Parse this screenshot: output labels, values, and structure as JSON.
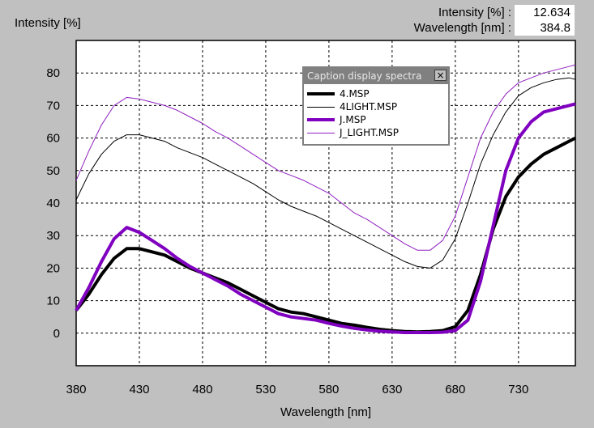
{
  "readout": {
    "intensity_label": "Intensity [%] :",
    "intensity_value": "12.634",
    "wavelength_label": "Wavelength [nm] :",
    "wavelength_value": "384.8"
  },
  "caption_window": {
    "title": "Caption display spectra",
    "close_glyph": "×"
  },
  "chart_data": {
    "type": "line",
    "xlabel": "Wavelength [nm]",
    "ylabel": "Intensity [%]",
    "xlim": [
      380,
      775
    ],
    "ylim": [
      -10,
      90
    ],
    "xticks": [
      380,
      430,
      480,
      530,
      580,
      630,
      680,
      730
    ],
    "yticks": [
      0,
      10,
      20,
      30,
      40,
      50,
      60,
      70,
      80
    ],
    "grid": true,
    "legend_placement": "top-center",
    "series": [
      {
        "name": "4.MSP",
        "color": "#000000",
        "width": "thick",
        "x": [
          380,
          390,
          400,
          410,
          420,
          430,
          440,
          450,
          460,
          470,
          480,
          490,
          500,
          510,
          520,
          530,
          540,
          550,
          560,
          570,
          580,
          590,
          600,
          610,
          620,
          630,
          640,
          650,
          660,
          670,
          680,
          690,
          700,
          710,
          720,
          730,
          740,
          750,
          760,
          770,
          775
        ],
        "y": [
          7,
          12,
          18,
          23,
          26,
          26,
          25,
          24,
          22,
          20,
          18.5,
          17,
          15.5,
          13.5,
          11.5,
          9.5,
          7.5,
          6.5,
          6,
          5,
          4,
          3,
          2.5,
          1.8,
          1.2,
          0.8,
          0.5,
          0.4,
          0.5,
          0.8,
          2,
          7,
          18,
          32,
          42,
          48,
          52,
          55,
          57,
          59,
          60
        ]
      },
      {
        "name": "4LIGHT.MSP",
        "color": "#000000",
        "width": "thin",
        "x": [
          380,
          390,
          400,
          410,
          420,
          430,
          440,
          450,
          460,
          470,
          480,
          490,
          500,
          510,
          520,
          530,
          540,
          550,
          560,
          570,
          580,
          590,
          600,
          610,
          620,
          630,
          640,
          650,
          660,
          670,
          680,
          690,
          700,
          710,
          720,
          730,
          740,
          750,
          760,
          770,
          775
        ],
        "y": [
          41,
          49,
          55,
          59,
          61,
          61,
          60,
          59,
          57,
          55.5,
          54,
          52,
          50,
          48,
          46,
          43.5,
          41,
          39,
          37.5,
          36,
          34,
          32,
          30,
          28,
          26,
          24,
          22,
          20.5,
          20,
          22.5,
          29,
          40,
          52,
          61,
          68,
          73,
          75.5,
          77,
          78,
          78.5,
          78
        ]
      },
      {
        "name": "J.MSP",
        "color": "#8000c0",
        "width": "thick",
        "x": [
          380,
          390,
          400,
          410,
          420,
          430,
          440,
          450,
          460,
          470,
          480,
          490,
          500,
          510,
          520,
          530,
          540,
          550,
          560,
          570,
          580,
          590,
          600,
          610,
          620,
          630,
          640,
          650,
          660,
          670,
          680,
          690,
          700,
          710,
          720,
          730,
          740,
          750,
          760,
          770,
          775
        ],
        "y": [
          7,
          14,
          22,
          29,
          32.5,
          31,
          28.5,
          26,
          23,
          20.5,
          18.5,
          16.5,
          14.5,
          12,
          10,
          8,
          6,
          5,
          4.5,
          4,
          3,
          2.2,
          1.5,
          1,
          0.6,
          0.4,
          0.2,
          0.2,
          0.2,
          0.3,
          0.8,
          4,
          16,
          33,
          50,
          60,
          65,
          68,
          69,
          70,
          70.5
        ]
      },
      {
        "name": "J_LIGHT.MSP",
        "color": "#9020c0",
        "width": "thin",
        "x": [
          380,
          390,
          400,
          410,
          420,
          430,
          440,
          450,
          460,
          470,
          480,
          490,
          500,
          510,
          520,
          530,
          540,
          550,
          560,
          570,
          580,
          590,
          600,
          610,
          620,
          630,
          640,
          650,
          660,
          670,
          680,
          690,
          700,
          710,
          720,
          730,
          740,
          750,
          760,
          770,
          775
        ],
        "y": [
          47,
          56,
          64,
          70,
          72.5,
          72,
          71,
          70,
          68.5,
          66.5,
          64.5,
          62,
          60,
          57.5,
          55,
          52.5,
          50,
          48.5,
          47,
          45,
          43,
          40,
          37,
          35,
          32.5,
          30,
          27.5,
          25.5,
          25.5,
          28.5,
          36,
          48,
          60,
          68,
          73.5,
          77,
          78.5,
          80,
          81,
          82,
          82.5
        ]
      }
    ]
  }
}
